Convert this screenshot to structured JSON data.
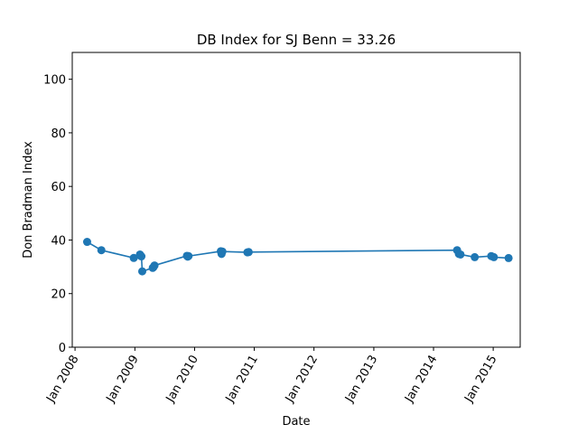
{
  "chart_data": {
    "type": "line",
    "title": "DB Index for SJ Benn = 33.26",
    "xlabel": "Date",
    "ylabel": "Don Bradman Index",
    "ylim": [
      0,
      110
    ],
    "yticks": [
      0,
      20,
      40,
      60,
      80,
      100
    ],
    "xlim": [
      "2007-12-15",
      "2015-06-15"
    ],
    "xticks": [
      {
        "date": "2008-01-01",
        "label": "Jan 2008"
      },
      {
        "date": "2009-01-01",
        "label": "Jan 2009"
      },
      {
        "date": "2010-01-01",
        "label": "Jan 2010"
      },
      {
        "date": "2011-01-01",
        "label": "Jan 2011"
      },
      {
        "date": "2012-01-01",
        "label": "Jan 2012"
      },
      {
        "date": "2013-01-01",
        "label": "Jan 2013"
      },
      {
        "date": "2014-01-01",
        "label": "Jan 2014"
      },
      {
        "date": "2015-01-01",
        "label": "Jan 2015"
      }
    ],
    "grid": false,
    "series": [
      {
        "color": "#1f77b4",
        "marker": "circle",
        "points": [
          {
            "x": "2008-03-15",
            "y": 39.3
          },
          {
            "x": "2008-06-10",
            "y": 36.2
          },
          {
            "x": "2008-12-25",
            "y": 33.3
          },
          {
            "x": "2009-02-01",
            "y": 34.6
          },
          {
            "x": "2009-02-05",
            "y": 34.1
          },
          {
            "x": "2009-02-10",
            "y": 33.9
          },
          {
            "x": "2009-02-15",
            "y": 28.3
          },
          {
            "x": "2009-04-20",
            "y": 29.6
          },
          {
            "x": "2009-04-25",
            "y": 29.9
          },
          {
            "x": "2009-05-01",
            "y": 30.5
          },
          {
            "x": "2009-11-15",
            "y": 34.1
          },
          {
            "x": "2009-11-20",
            "y": 33.8
          },
          {
            "x": "2009-11-25",
            "y": 34.0
          },
          {
            "x": "2010-06-10",
            "y": 35.8
          },
          {
            "x": "2010-06-15",
            "y": 34.8
          },
          {
            "x": "2010-06-20",
            "y": 35.7
          },
          {
            "x": "2010-11-20",
            "y": 35.4
          },
          {
            "x": "2010-11-28",
            "y": 35.5
          },
          {
            "x": "2014-05-25",
            "y": 36.2
          },
          {
            "x": "2014-06-05",
            "y": 34.8
          },
          {
            "x": "2014-06-15",
            "y": 34.6
          },
          {
            "x": "2014-09-10",
            "y": 33.6
          },
          {
            "x": "2014-12-20",
            "y": 34.0
          },
          {
            "x": "2015-01-05",
            "y": 33.6
          },
          {
            "x": "2015-04-05",
            "y": 33.26
          }
        ]
      }
    ]
  }
}
